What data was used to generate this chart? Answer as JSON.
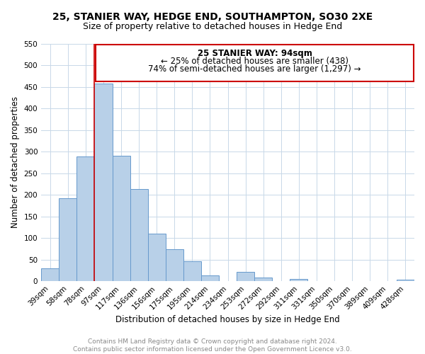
{
  "title": "25, STANIER WAY, HEDGE END, SOUTHAMPTON, SO30 2XE",
  "subtitle": "Size of property relative to detached houses in Hedge End",
  "bar_labels": [
    "39sqm",
    "58sqm",
    "78sqm",
    "97sqm",
    "117sqm",
    "136sqm",
    "156sqm",
    "175sqm",
    "195sqm",
    "214sqm",
    "234sqm",
    "253sqm",
    "272sqm",
    "292sqm",
    "311sqm",
    "331sqm",
    "350sqm",
    "370sqm",
    "389sqm",
    "409sqm",
    "428sqm"
  ],
  "bar_values": [
    30,
    192,
    288,
    457,
    291,
    213,
    110,
    74,
    46,
    13,
    0,
    22,
    9,
    0,
    5,
    0,
    0,
    0,
    0,
    0,
    3
  ],
  "bar_color": "#b8d0e8",
  "bar_edge_color": "#6699cc",
  "grid_color": "#c8d8e8",
  "vline_color": "#cc0000",
  "ylabel": "Number of detached properties",
  "xlabel": "Distribution of detached houses by size in Hedge End",
  "ylim_max": 550,
  "yticks": [
    0,
    50,
    100,
    150,
    200,
    250,
    300,
    350,
    400,
    450,
    500,
    550
  ],
  "annotation_title": "25 STANIER WAY: 94sqm",
  "annotation_line1": "← 25% of detached houses are smaller (438)",
  "annotation_line2": "74% of semi-detached houses are larger (1,297) →",
  "annotation_box_color": "#ffffff",
  "annotation_box_edge": "#cc0000",
  "footer1": "Contains HM Land Registry data © Crown copyright and database right 2024.",
  "footer2": "Contains public sector information licensed under the Open Government Licence v3.0.",
  "title_fontsize": 10,
  "subtitle_fontsize": 9,
  "axis_label_fontsize": 8.5,
  "tick_fontsize": 7.5,
  "annotation_fontsize": 8.5,
  "footer_fontsize": 6.5,
  "vline_bar_index": 3
}
